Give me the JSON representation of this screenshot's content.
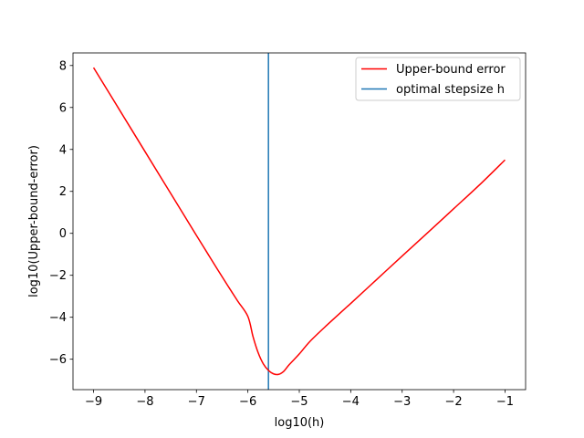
{
  "chart_data": {
    "type": "line",
    "title": "",
    "xlabel": "log10(h)",
    "ylabel": "log10(Upper-bound-error)",
    "xlim": [
      -9.4,
      -0.6
    ],
    "ylim": [
      -7.45,
      8.6
    ],
    "xticks": [
      -9,
      -8,
      -7,
      -6,
      -5,
      -4,
      -3,
      -2,
      -1
    ],
    "yticks": [
      -6,
      -4,
      -2,
      0,
      2,
      4,
      6,
      8
    ],
    "xtick_labels": [
      "−9",
      "−8",
      "−7",
      "−6",
      "−5",
      "−4",
      "−3",
      "−2",
      "−1"
    ],
    "ytick_labels": [
      "−6",
      "−4",
      "−2",
      "0",
      "2",
      "4",
      "6",
      "8"
    ],
    "grid": false,
    "legend_position": "upper-right",
    "series": [
      {
        "name": "Upper-bound error",
        "color": "#ff0000",
        "x": [
          -9.0,
          -8.5,
          -8.0,
          -7.5,
          -7.0,
          -6.8,
          -6.6,
          -6.4,
          -6.2,
          -6.0,
          -5.9,
          -5.8,
          -5.7,
          -5.6,
          -5.5,
          -5.4,
          -5.3,
          -5.2,
          -5.0,
          -4.8,
          -4.5,
          -4.0,
          -3.5,
          -3.0,
          -2.5,
          -2.0,
          -1.5,
          -1.0
        ],
        "y": [
          7.9,
          5.9,
          3.9,
          1.9,
          -0.1,
          -0.89,
          -1.68,
          -2.46,
          -3.22,
          -3.96,
          -4.92,
          -5.69,
          -6.22,
          -6.53,
          -6.7,
          -6.72,
          -6.57,
          -6.27,
          -5.75,
          -5.17,
          -4.46,
          -3.34,
          -2.21,
          -1.08,
          0.04,
          1.17,
          2.3,
          3.5
        ]
      },
      {
        "name": "optimal stepsize h",
        "color": "#1f77b4",
        "vline_x": -5.6
      }
    ]
  }
}
